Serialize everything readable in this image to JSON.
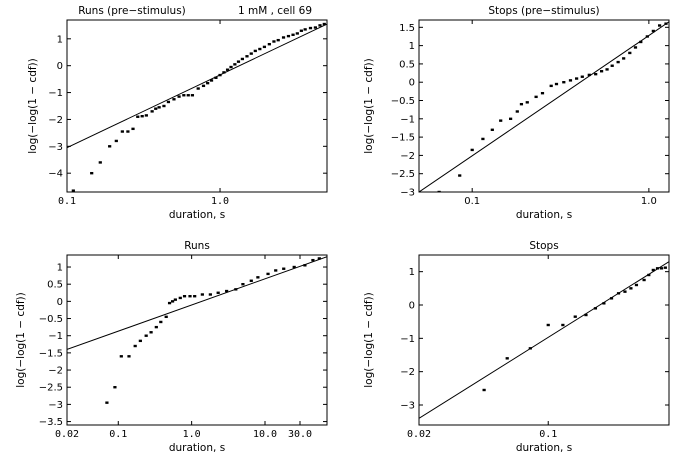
{
  "figure": {
    "header_note": "1 mM , cell 69"
  },
  "chart_data": [
    {
      "type": "scatter",
      "title": "Runs (pre−stimulus)",
      "xlabel": "duration, s",
      "ylabel": "log(−log(1 − cdf))",
      "x_scale": "log",
      "xlim": [
        0.1,
        5
      ],
      "ylim": [
        -4.7,
        1.7
      ],
      "x_ticks": [
        0.1,
        1.0
      ],
      "x_tick_labels": [
        "0.1",
        "1.0"
      ],
      "y_ticks": [
        -4,
        -3,
        -2,
        -1,
        0,
        1
      ],
      "y_tick_labels": [
        "−4",
        "−3",
        "−2",
        "−1",
        "0",
        "1"
      ],
      "fit_line": {
        "x": [
          0.1,
          5
        ],
        "y": [
          -3.05,
          1.55
        ]
      },
      "points": [
        {
          "x": 0.11,
          "y": -4.65
        },
        {
          "x": 0.145,
          "y": -4.0
        },
        {
          "x": 0.165,
          "y": -3.6
        },
        {
          "x": 0.19,
          "y": -3.0
        },
        {
          "x": 0.21,
          "y": -2.8
        },
        {
          "x": 0.23,
          "y": -2.45
        },
        {
          "x": 0.25,
          "y": -2.45
        },
        {
          "x": 0.27,
          "y": -2.35
        },
        {
          "x": 0.29,
          "y": -1.9
        },
        {
          "x": 0.31,
          "y": -1.88
        },
        {
          "x": 0.33,
          "y": -1.85
        },
        {
          "x": 0.36,
          "y": -1.7
        },
        {
          "x": 0.38,
          "y": -1.6
        },
        {
          "x": 0.4,
          "y": -1.55
        },
        {
          "x": 0.43,
          "y": -1.5
        },
        {
          "x": 0.46,
          "y": -1.35
        },
        {
          "x": 0.5,
          "y": -1.25
        },
        {
          "x": 0.54,
          "y": -1.15
        },
        {
          "x": 0.58,
          "y": -1.1
        },
        {
          "x": 0.62,
          "y": -1.1
        },
        {
          "x": 0.66,
          "y": -1.1
        },
        {
          "x": 0.72,
          "y": -0.85
        },
        {
          "x": 0.78,
          "y": -0.75
        },
        {
          "x": 0.83,
          "y": -0.65
        },
        {
          "x": 0.88,
          "y": -0.55
        },
        {
          "x": 0.94,
          "y": -0.45
        },
        {
          "x": 1.0,
          "y": -0.35
        },
        {
          "x": 1.06,
          "y": -0.25
        },
        {
          "x": 1.12,
          "y": -0.15
        },
        {
          "x": 1.18,
          "y": -0.05
        },
        {
          "x": 1.25,
          "y": 0.05
        },
        {
          "x": 1.32,
          "y": 0.15
        },
        {
          "x": 1.4,
          "y": 0.25
        },
        {
          "x": 1.5,
          "y": 0.35
        },
        {
          "x": 1.6,
          "y": 0.45
        },
        {
          "x": 1.7,
          "y": 0.55
        },
        {
          "x": 1.82,
          "y": 0.62
        },
        {
          "x": 1.95,
          "y": 0.7
        },
        {
          "x": 2.1,
          "y": 0.8
        },
        {
          "x": 2.25,
          "y": 0.9
        },
        {
          "x": 2.4,
          "y": 0.95
        },
        {
          "x": 2.6,
          "y": 1.05
        },
        {
          "x": 2.8,
          "y": 1.1
        },
        {
          "x": 3.0,
          "y": 1.15
        },
        {
          "x": 3.2,
          "y": 1.2
        },
        {
          "x": 3.4,
          "y": 1.3
        },
        {
          "x": 3.6,
          "y": 1.35
        },
        {
          "x": 3.9,
          "y": 1.4
        },
        {
          "x": 4.2,
          "y": 1.42
        },
        {
          "x": 4.5,
          "y": 1.5
        },
        {
          "x": 4.8,
          "y": 1.55
        }
      ]
    },
    {
      "type": "scatter",
      "title": "Stops (pre−stimulus)",
      "xlabel": "duration, s",
      "ylabel": "log(−log(1 − cdf))",
      "x_scale": "log",
      "xlim": [
        0.05,
        1.3
      ],
      "ylim": [
        -3,
        1.7
      ],
      "x_ticks": [
        0.1,
        1.0
      ],
      "x_tick_labels": [
        "0.1",
        "1.0"
      ],
      "y_ticks": [
        -3,
        -2.5,
        -2,
        -1.5,
        -1,
        -0.5,
        0,
        0.5,
        1,
        1.5
      ],
      "y_tick_labels": [
        "−3",
        "−2.5",
        "−2",
        "−1.5",
        "−1",
        "−0.5",
        "0",
        "0.5",
        "1",
        "1.5"
      ],
      "fit_line": {
        "x": [
          0.05,
          1.3
        ],
        "y": [
          -3.0,
          1.65
        ]
      },
      "points": [
        {
          "x": 0.065,
          "y": -3.0
        },
        {
          "x": 0.085,
          "y": -2.55
        },
        {
          "x": 0.1,
          "y": -1.85
        },
        {
          "x": 0.115,
          "y": -1.55
        },
        {
          "x": 0.13,
          "y": -1.3
        },
        {
          "x": 0.145,
          "y": -1.05
        },
        {
          "x": 0.165,
          "y": -1.0
        },
        {
          "x": 0.18,
          "y": -0.8
        },
        {
          "x": 0.19,
          "y": -0.6
        },
        {
          "x": 0.205,
          "y": -0.55
        },
        {
          "x": 0.23,
          "y": -0.4
        },
        {
          "x": 0.25,
          "y": -0.3
        },
        {
          "x": 0.28,
          "y": -0.1
        },
        {
          "x": 0.3,
          "y": -0.05
        },
        {
          "x": 0.33,
          "y": 0.0
        },
        {
          "x": 0.36,
          "y": 0.05
        },
        {
          "x": 0.39,
          "y": 0.1
        },
        {
          "x": 0.42,
          "y": 0.15
        },
        {
          "x": 0.46,
          "y": 0.2
        },
        {
          "x": 0.5,
          "y": 0.22
        },
        {
          "x": 0.54,
          "y": 0.3
        },
        {
          "x": 0.58,
          "y": 0.35
        },
        {
          "x": 0.62,
          "y": 0.45
        },
        {
          "x": 0.67,
          "y": 0.55
        },
        {
          "x": 0.72,
          "y": 0.65
        },
        {
          "x": 0.78,
          "y": 0.8
        },
        {
          "x": 0.84,
          "y": 0.95
        },
        {
          "x": 0.9,
          "y": 1.1
        },
        {
          "x": 0.98,
          "y": 1.25
        },
        {
          "x": 1.06,
          "y": 1.4
        },
        {
          "x": 1.15,
          "y": 1.55
        },
        {
          "x": 1.25,
          "y": 1.6
        }
      ]
    },
    {
      "type": "scatter",
      "title": "Runs",
      "xlabel": "duration, s",
      "ylabel": "log(−log(1 − cdf))",
      "x_scale": "log",
      "xlim": [
        0.02,
        70
      ],
      "ylim": [
        -3.6,
        1.35
      ],
      "x_ticks": [
        0.02,
        0.1,
        1.0,
        10.0,
        30.0
      ],
      "x_tick_labels": [
        "0.02",
        "0.1",
        "1.0",
        "10.0",
        "30.0"
      ],
      "y_ticks": [
        -3.5,
        -3,
        -2.5,
        -2,
        -1.5,
        -1,
        -0.5,
        0,
        0.5,
        1
      ],
      "y_tick_labels": [
        "−3.5",
        "−3",
        "−2.5",
        "−2",
        "−1.5",
        "−1",
        "−0.5",
        "0",
        "0.5",
        "1"
      ],
      "fit_line": {
        "x": [
          0.02,
          70
        ],
        "y": [
          -1.4,
          1.3
        ]
      },
      "points": [
        {
          "x": 0.07,
          "y": -2.95
        },
        {
          "x": 0.09,
          "y": -2.5
        },
        {
          "x": 0.11,
          "y": -1.6
        },
        {
          "x": 0.14,
          "y": -1.6
        },
        {
          "x": 0.17,
          "y": -1.3
        },
        {
          "x": 0.2,
          "y": -1.15
        },
        {
          "x": 0.24,
          "y": -1.0
        },
        {
          "x": 0.28,
          "y": -0.9
        },
        {
          "x": 0.33,
          "y": -0.75
        },
        {
          "x": 0.38,
          "y": -0.6
        },
        {
          "x": 0.45,
          "y": -0.45
        },
        {
          "x": 0.5,
          "y": -0.05
        },
        {
          "x": 0.55,
          "y": 0.0
        },
        {
          "x": 0.6,
          "y": 0.05
        },
        {
          "x": 0.7,
          "y": 0.1
        },
        {
          "x": 0.8,
          "y": 0.15
        },
        {
          "x": 0.95,
          "y": 0.15
        },
        {
          "x": 1.1,
          "y": 0.15
        },
        {
          "x": 1.4,
          "y": 0.2
        },
        {
          "x": 1.8,
          "y": 0.2
        },
        {
          "x": 2.3,
          "y": 0.25
        },
        {
          "x": 3.0,
          "y": 0.3
        },
        {
          "x": 4.0,
          "y": 0.35
        },
        {
          "x": 5.0,
          "y": 0.5
        },
        {
          "x": 6.5,
          "y": 0.6
        },
        {
          "x": 8.0,
          "y": 0.7
        },
        {
          "x": 11,
          "y": 0.8
        },
        {
          "x": 14,
          "y": 0.9
        },
        {
          "x": 18,
          "y": 0.95
        },
        {
          "x": 25,
          "y": 1.0
        },
        {
          "x": 35,
          "y": 1.05
        },
        {
          "x": 45,
          "y": 1.2
        },
        {
          "x": 55,
          "y": 1.25
        }
      ]
    },
    {
      "type": "scatter",
      "title": "Stops",
      "xlabel": "duration, s",
      "ylabel": "log(−log(1 − cdf))",
      "x_scale": "log",
      "xlim": [
        0.02,
        0.45
      ],
      "ylim": [
        -3.6,
        1.5
      ],
      "x_ticks": [
        0.02,
        0.1
      ],
      "x_tick_labels": [
        "0.02",
        "0.1"
      ],
      "y_ticks": [
        -3,
        -2,
        -1,
        0,
        1
      ],
      "y_tick_labels": [
        "−3",
        "−2",
        "−1",
        "0",
        "1"
      ],
      "fit_line": {
        "x": [
          0.02,
          0.45
        ],
        "y": [
          -3.4,
          1.3
        ]
      },
      "points": [
        {
          "x": 0.045,
          "y": -2.55
        },
        {
          "x": 0.06,
          "y": -1.6
        },
        {
          "x": 0.08,
          "y": -1.3
        },
        {
          "x": 0.1,
          "y": -0.6
        },
        {
          "x": 0.12,
          "y": -0.6
        },
        {
          "x": 0.14,
          "y": -0.35
        },
        {
          "x": 0.16,
          "y": -0.3
        },
        {
          "x": 0.18,
          "y": -0.1
        },
        {
          "x": 0.2,
          "y": 0.05
        },
        {
          "x": 0.22,
          "y": 0.2
        },
        {
          "x": 0.24,
          "y": 0.35
        },
        {
          "x": 0.26,
          "y": 0.4
        },
        {
          "x": 0.28,
          "y": 0.5
        },
        {
          "x": 0.3,
          "y": 0.6
        },
        {
          "x": 0.33,
          "y": 0.75
        },
        {
          "x": 0.35,
          "y": 0.9
        },
        {
          "x": 0.37,
          "y": 1.05
        },
        {
          "x": 0.39,
          "y": 1.1
        },
        {
          "x": 0.41,
          "y": 1.1
        },
        {
          "x": 0.43,
          "y": 1.12
        }
      ]
    }
  ]
}
